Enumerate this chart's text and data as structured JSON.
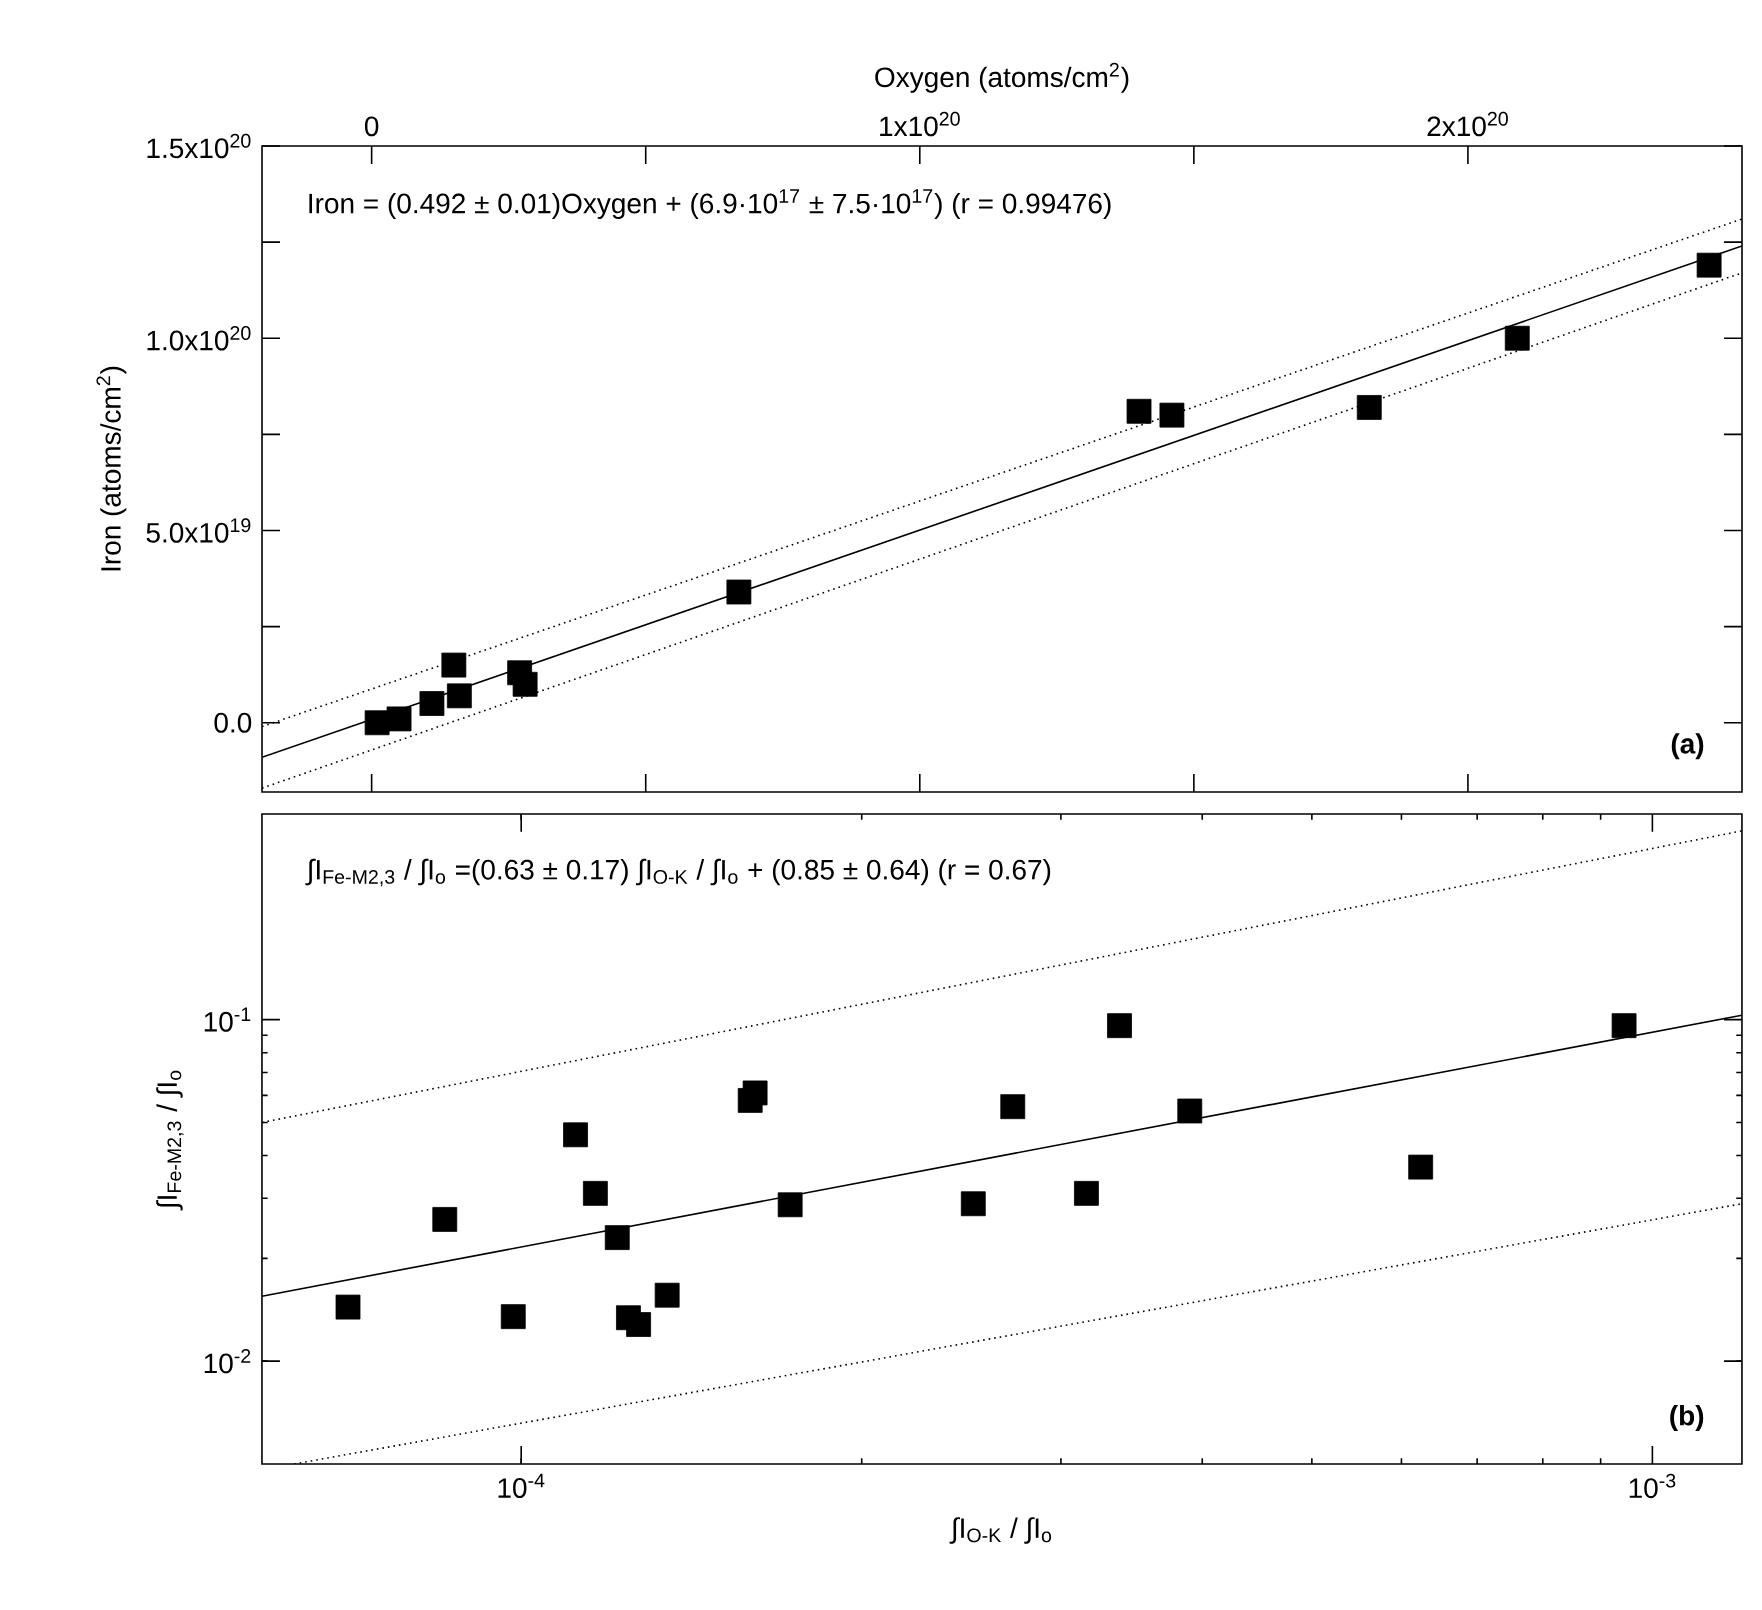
{
  "chart_data": [
    {
      "type": "scatter",
      "xlabel": "Oxygen (atoms/cm$^{2}$)",
      "ylabel": "Iron (atoms/cm$^{2}$)",
      "xlim": [
        -2e+19,
        2.5e+20
      ],
      "ylim": [
        -1.8e+19,
        1.5e+20
      ],
      "xticks": [
        {
          "value": 0,
          "label": "0"
        },
        {
          "value": 5e+19,
          "label": null
        },
        {
          "value": 1e+20,
          "label": "1x10$^{20}$"
        },
        {
          "value": 1.5e+20,
          "label": null
        },
        {
          "value": 2e+20,
          "label": "2x10$^{20}$"
        }
      ],
      "yticks": [
        {
          "value": 0,
          "label": "0.0"
        },
        {
          "value": 2.5e+19,
          "label": null
        },
        {
          "value": 5e+19,
          "label": "5.0x10$^{19}$"
        },
        {
          "value": 7.5e+19,
          "label": null
        },
        {
          "value": 1e+20,
          "label": "1.0x10$^{20}$"
        },
        {
          "value": 1.25e+20,
          "label": null
        },
        {
          "value": 1.5e+20,
          "label": "1.5x10$^{20}$"
        }
      ],
      "annotations": [
        "Iron = (0.492 ± 0.01)Oxygen + (6.9·10$^{17}$ ± 7.5·10$^{17}$)  (r = 0.99476)",
        "**(a)**"
      ],
      "series": [
        {
          "type": "scatter",
          "marker": "square",
          "color": "#000000",
          "x": [
            1e+18,
            5e+18,
            1.1e+19,
            1.5e+19,
            1.6e+19,
            2.7e+19,
            2.8e+19,
            6.7e+19,
            1.4e+20,
            1.46e+20,
            1.82e+20,
            2.09e+20,
            2.44e+20
          ],
          "values": [
            0,
            1e+18,
            5e+18,
            1.5e+19,
            7e+18,
            1.3e+19,
            1e+19,
            3.4e+19,
            8.1e+19,
            8e+19,
            8.2e+19,
            1e+20,
            1.19e+20
          ]
        },
        {
          "type": "line",
          "marker": "none",
          "color": "#000000",
          "line_style": "solid",
          "x": [
            -2e+19,
            2.5e+20
          ],
          "values": [
            -9e+18,
            1.24e+20
          ]
        },
        {
          "type": "line",
          "marker": "none",
          "color": "#000000",
          "line_style": "dotted",
          "x": [
            -2e+19,
            2.5e+20
          ],
          "values": [
            -1e+18,
            1.31e+20
          ]
        },
        {
          "type": "line",
          "marker": "none",
          "color": "#000000",
          "line_style": "dotted",
          "x": [
            -2e+19,
            2.5e+20
          ],
          "values": [
            -1.7e+19,
            1.17e+20
          ]
        }
      ]
    },
    {
      "type": "scatter",
      "xlabel": "∫I$_{O-K}$ / ∫I$_{o}$",
      "ylabel": "∫I$_{Fe-M2,3}$ / ∫I$_{o}$",
      "log": "xy",
      "xlim": [
        5.9e-05,
        0.0012
      ],
      "ylim": [
        0.005,
        0.4
      ],
      "xticks": [
        {
          "value": 0.0001,
          "label": "10$^{-4}$"
        },
        {
          "value": 0.001,
          "label": "10$^{-3}$"
        }
      ],
      "yticks": [
        {
          "value": 0.01,
          "label": "10$^{-2}$"
        },
        {
          "value": 0.1,
          "label": "10$^{-1}$"
        }
      ],
      "annotations": [
        "∫I$_{Fe-M2,3}$ / ∫I$_{o}$ =(0.63 ± 0.17) ∫I$_{O-K}$ / ∫I$_{o}$ + (0.85 ± 0.64)  (r = 0.67)",
        "**(b)**"
      ],
      "series": [
        {
          "type": "scatter",
          "marker": "square",
          "color": "#000000",
          "x": [
            7.03e-05,
            8.56e-05,
            9.84e-05,
            0.0001117,
            0.0001163,
            0.0001216,
            0.0001244,
            0.000127,
            0.0001346,
            0.0001594,
            0.000161,
            0.0001729,
            0.000251,
            0.000272,
            0.000316,
            0.000338,
            0.00039,
            0.000624,
            0.000944
          ],
          "values": [
            0.0144,
            0.026,
            0.0135,
            0.046,
            0.031,
            0.023,
            0.0134,
            0.0128,
            0.0156,
            0.058,
            0.061,
            0.0287,
            0.0289,
            0.0556,
            0.031,
            0.096,
            0.054,
            0.037,
            0.096
          ]
        },
        {
          "type": "line",
          "marker": "none",
          "color": "#000000",
          "line_style": "solid",
          "x": [
            5.9e-05,
            0.0012
          ],
          "values": [
            0.0155,
            0.103
          ]
        },
        {
          "type": "line",
          "marker": "none",
          "color": "#000000",
          "line_style": "dotted",
          "x": [
            5.9e-05,
            0.0012
          ],
          "values": [
            0.05,
            0.357
          ]
        },
        {
          "type": "line",
          "marker": "none",
          "color": "#000000",
          "line_style": "dotted",
          "x": [
            6.3e-05,
            0.0012
          ],
          "values": [
            0.005,
            0.0289
          ]
        }
      ]
    }
  ]
}
